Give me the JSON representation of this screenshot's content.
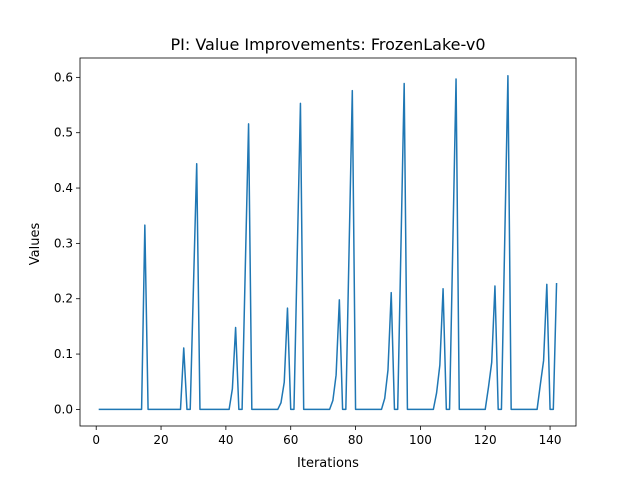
{
  "chart_data": {
    "type": "line",
    "title": "PI: Value Improvements: FrozenLake-v0",
    "xlabel": "Iterations",
    "ylabel": "Values",
    "xlim": [
      -5,
      148
    ],
    "ylim": [
      -0.03,
      0.635
    ],
    "xticks": [
      0,
      20,
      40,
      60,
      80,
      100,
      120,
      140
    ],
    "yticks": [
      0.0,
      0.1,
      0.2,
      0.3,
      0.4,
      0.5,
      0.6
    ],
    "ytick_labels": [
      "0.0",
      "0.1",
      "0.2",
      "0.3",
      "0.4",
      "0.5",
      "0.6"
    ],
    "grid": false,
    "legend": "none",
    "series": [
      {
        "color": "#1f77b4",
        "x": [
          1,
          2,
          3,
          4,
          5,
          6,
          7,
          8,
          9,
          10,
          11,
          12,
          13,
          14,
          15,
          16,
          17,
          18,
          19,
          20,
          21,
          22,
          23,
          24,
          25,
          26,
          27,
          28,
          29,
          30,
          31,
          32,
          33,
          34,
          35,
          36,
          37,
          38,
          39,
          40,
          41,
          42,
          43,
          44,
          45,
          46,
          47,
          48,
          49,
          50,
          51,
          52,
          53,
          54,
          55,
          56,
          57,
          58,
          59,
          60,
          61,
          62,
          63,
          64,
          65,
          66,
          67,
          68,
          69,
          70,
          71,
          72,
          73,
          74,
          75,
          76,
          77,
          78,
          79,
          80,
          81,
          82,
          83,
          84,
          85,
          86,
          87,
          88,
          89,
          90,
          91,
          92,
          93,
          94,
          95,
          96,
          97,
          98,
          99,
          100,
          101,
          102,
          103,
          104,
          105,
          106,
          107,
          108,
          109,
          110,
          111,
          112,
          113,
          114,
          115,
          116,
          117,
          118,
          119,
          120,
          121,
          122,
          123,
          124,
          125,
          126,
          127,
          128,
          129,
          130,
          131,
          132,
          133,
          134,
          135,
          136,
          137,
          138,
          139,
          140,
          141,
          142
        ],
        "values": [
          0,
          0,
          0,
          0,
          0,
          0,
          0,
          0,
          0,
          0,
          0,
          0,
          0,
          0,
          0.333,
          0,
          0,
          0,
          0,
          0,
          0,
          0,
          0,
          0,
          0,
          0,
          0.111,
          0,
          0,
          0.222,
          0.444,
          0,
          0,
          0,
          0,
          0,
          0,
          0,
          0,
          0,
          0,
          0.037,
          0.148,
          0,
          0,
          0.259,
          0.516,
          0,
          0,
          0,
          0,
          0,
          0,
          0,
          0,
          0,
          0.012,
          0.049,
          0.183,
          0,
          0,
          0.276,
          0.553,
          0,
          0,
          0,
          0,
          0,
          0,
          0,
          0,
          0,
          0.016,
          0.062,
          0.198,
          0,
          0,
          0.288,
          0.576,
          0,
          0,
          0,
          0,
          0,
          0,
          0,
          0,
          0,
          0.02,
          0.071,
          0.211,
          0,
          0,
          0.294,
          0.589,
          0,
          0,
          0,
          0,
          0,
          0,
          0,
          0,
          0,
          0.03,
          0.08,
          0.218,
          0,
          0,
          0.298,
          0.597,
          0,
          0,
          0,
          0,
          0,
          0,
          0,
          0,
          0,
          0.04,
          0.085,
          0.223,
          0,
          0,
          0.301,
          0.603,
          0,
          0,
          0,
          0,
          0,
          0,
          0,
          0,
          0,
          0.045,
          0.088,
          0.226,
          0,
          0,
          0.227
        ]
      }
    ]
  }
}
